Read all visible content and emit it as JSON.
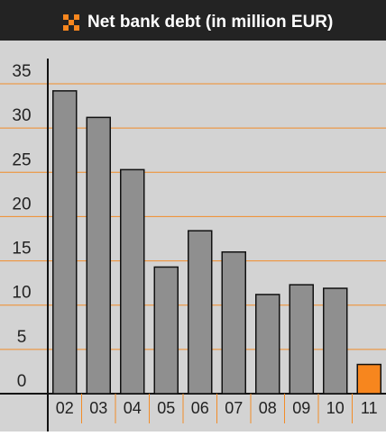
{
  "chart_data": {
    "type": "bar",
    "title": "Net bank debt (in million EUR)",
    "categories": [
      "02",
      "03",
      "04",
      "05",
      "06",
      "07",
      "08",
      "09",
      "10",
      "11"
    ],
    "values": [
      34.2,
      31.2,
      25.3,
      14.3,
      18.4,
      16.0,
      11.2,
      12.3,
      11.9,
      3.3
    ],
    "colors": [
      "#8f8f8f",
      "#8f8f8f",
      "#8f8f8f",
      "#8f8f8f",
      "#8f8f8f",
      "#8f8f8f",
      "#8f8f8f",
      "#8f8f8f",
      "#8f8f8f",
      "#f7861e"
    ],
    "ylim": [
      0,
      35
    ],
    "yticks": [
      0,
      5,
      10,
      15,
      20,
      25,
      30,
      35
    ],
    "grid": true,
    "grid_color": "#f28c28"
  }
}
